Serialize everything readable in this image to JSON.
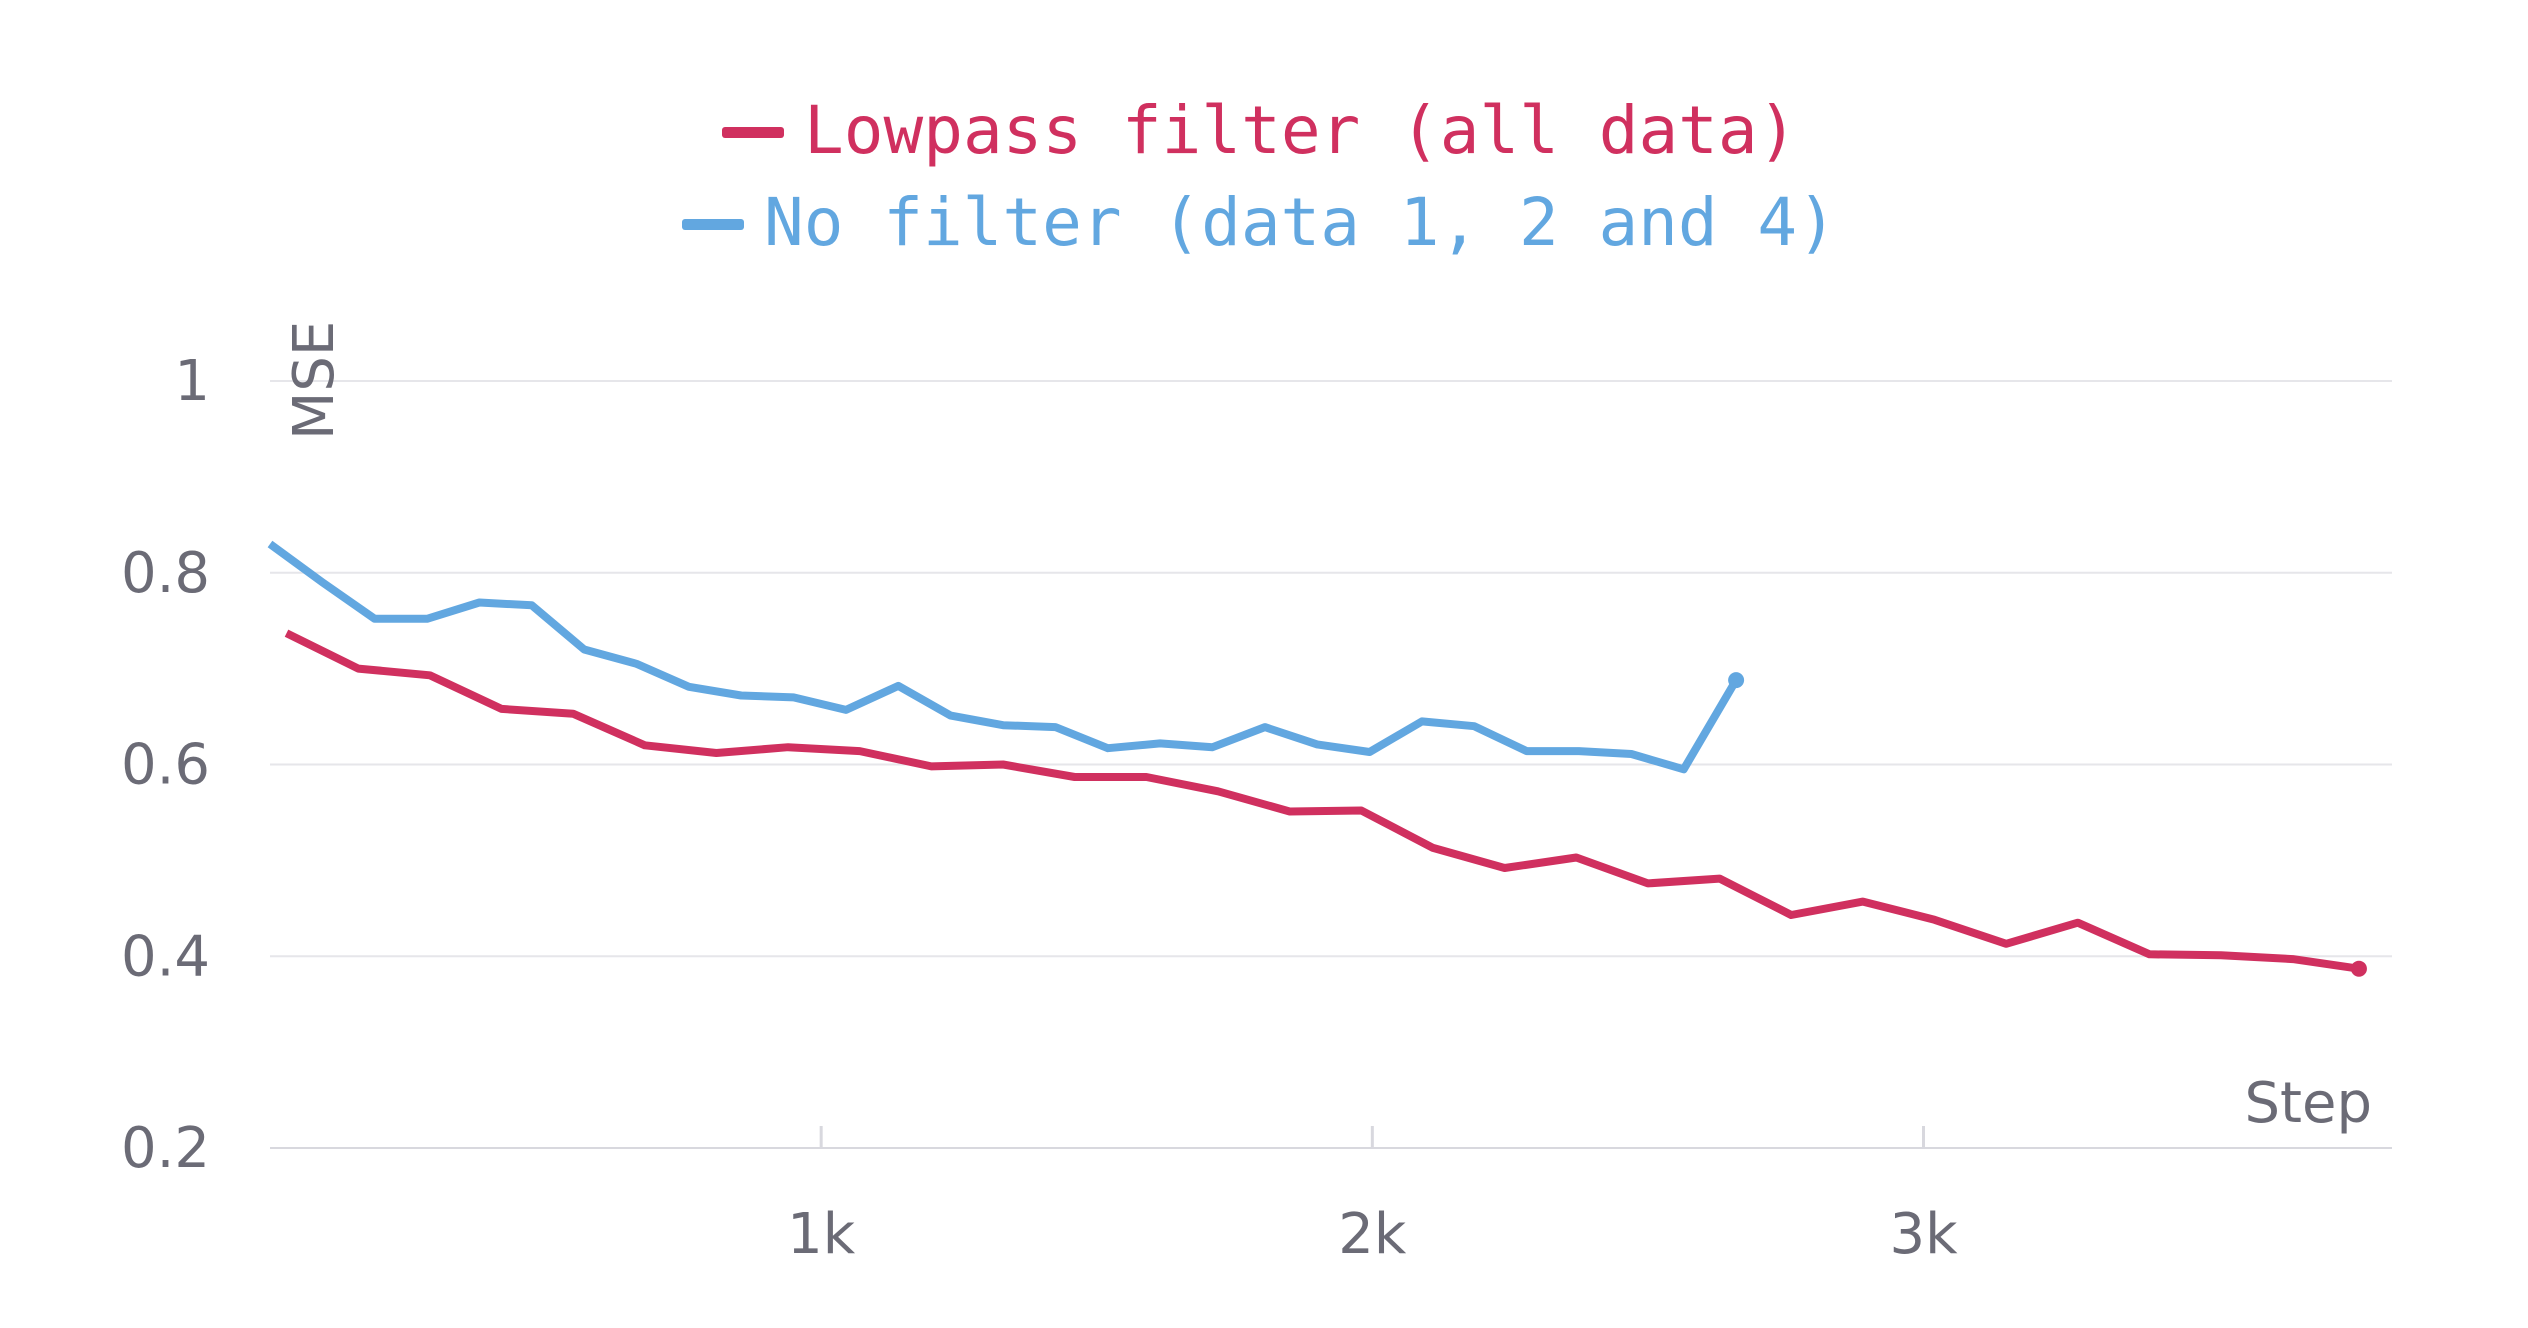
{
  "chart_data": {
    "type": "line",
    "xlabel": "Step",
    "ylabel": "MSE",
    "ylim": [
      0.2,
      1.0
    ],
    "xlim": [
      0,
      3850
    ],
    "yticks": [
      {
        "value": 0.2,
        "label": "0.2"
      },
      {
        "value": 0.4,
        "label": "0.4"
      },
      {
        "value": 0.6,
        "label": "0.6"
      },
      {
        "value": 0.8,
        "label": "0.8"
      },
      {
        "value": 1.0,
        "label": "1"
      }
    ],
    "xticks": [
      {
        "value": 1000,
        "label": "1k"
      },
      {
        "value": 2000,
        "label": "2k"
      },
      {
        "value": 3000,
        "label": "3k"
      }
    ],
    "legend": {
      "placement": "top-center"
    },
    "series": [
      {
        "name": "Lowpass filter (all data)",
        "color": "#d0305f",
        "x": [
          30,
          160,
          290,
          420,
          550,
          680,
          810,
          940,
          1070,
          1200,
          1330,
          1460,
          1590,
          1720,
          1850,
          1980,
          2110,
          2240,
          2370,
          2500,
          2630,
          2760,
          2890,
          3020,
          3150,
          3280,
          3410,
          3540,
          3670,
          3790
        ],
        "y": [
          0.737,
          0.7,
          0.693,
          0.658,
          0.653,
          0.62,
          0.612,
          0.618,
          0.614,
          0.598,
          0.6,
          0.587,
          0.587,
          0.572,
          0.551,
          0.552,
          0.513,
          0.492,
          0.503,
          0.476,
          0.481,
          0.443,
          0.457,
          0.438,
          0.413,
          0.435,
          0.402,
          0.401,
          0.397,
          0.387
        ]
      },
      {
        "name": "No filter (data 1, 2 and 4)",
        "color": "#62a7e0",
        "x": [
          0,
          95,
          190,
          285,
          380,
          475,
          570,
          665,
          760,
          855,
          950,
          1045,
          1140,
          1235,
          1330,
          1425,
          1520,
          1615,
          1710,
          1805,
          1900,
          1995,
          2090,
          2185,
          2280,
          2375,
          2470,
          2565,
          2660
        ],
        "y": [
          0.83,
          0.79,
          0.752,
          0.752,
          0.769,
          0.766,
          0.72,
          0.705,
          0.681,
          0.672,
          0.67,
          0.657,
          0.682,
          0.651,
          0.641,
          0.639,
          0.617,
          0.622,
          0.618,
          0.639,
          0.621,
          0.613,
          0.645,
          0.64,
          0.614,
          0.614,
          0.611,
          0.595,
          0.688
        ]
      }
    ]
  }
}
